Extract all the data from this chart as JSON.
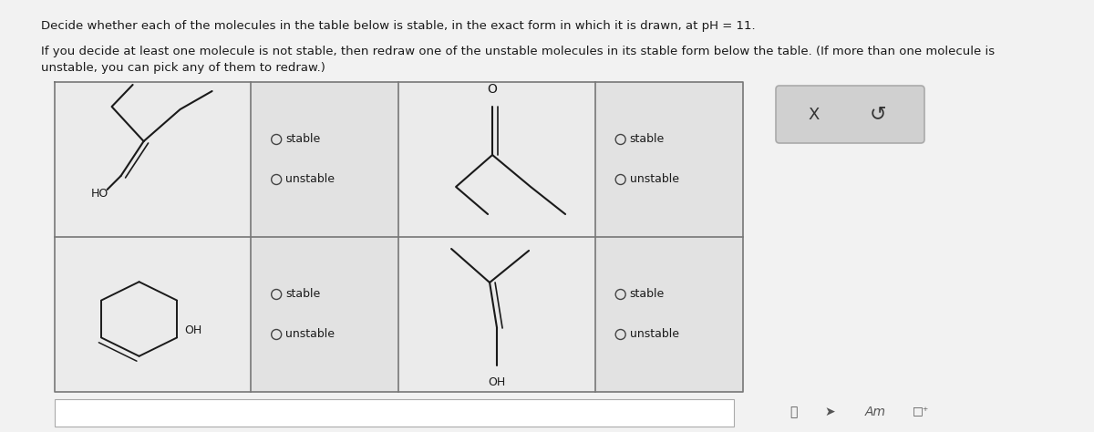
{
  "title_line1": "Decide whether each of the molecules in the table below is stable, in the exact form in which it is drawn, at pH = 11.",
  "title_line2a": "If you decide at least one molecule is not stable, then redraw one of the unstable molecules in its stable form below the table. (If more than one molecule is",
  "title_line2b": "unstable, you can pick any of them to redraw.)",
  "bg_color": "#f2f2f2",
  "text_color": "#1a1a1a",
  "molecule_color": "#1a1a1a",
  "table_border_color": "#777777",
  "cell_mol_bg": "#ebebeb",
  "cell_radio_bg": "#e2e2e2",
  "right_panel_bg": "#d0d0d0",
  "bottom_box_bg": "#ffffff"
}
